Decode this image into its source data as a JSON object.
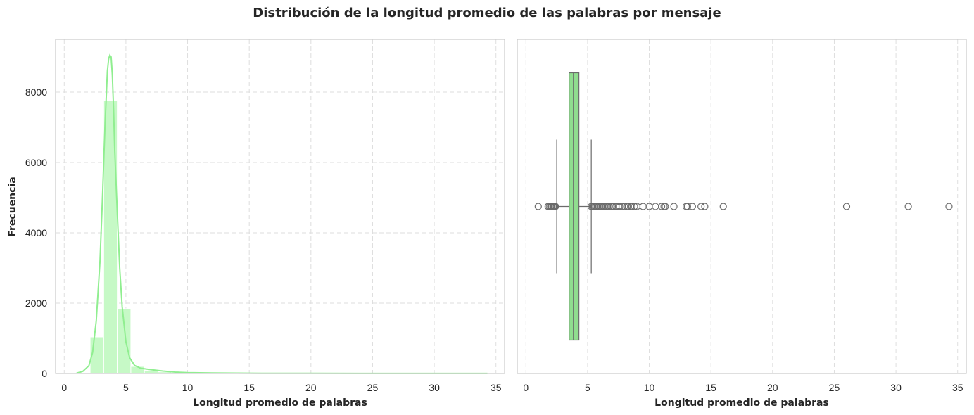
{
  "figure": {
    "suptitle": "Distribución de la longitud promedio de las palabras por mensaje"
  },
  "colors": {
    "hist_fill": "#c6f9c6",
    "kde_line": "#90ee90",
    "box_fill": "#90dd8f",
    "box_edge": "#6b6b6b",
    "frame": "#cccccc",
    "grid": "#dedede"
  },
  "chart_data": [
    {
      "type": "histogram",
      "title": "",
      "xlabel": "Longitud promedio de palabras",
      "ylabel": "Frecuencia",
      "xlim": [
        -0.7,
        35.7
      ],
      "ylim": [
        0,
        9500
      ],
      "xticks": [
        0,
        5,
        10,
        15,
        20,
        25,
        30,
        35
      ],
      "yticks": [
        0,
        2000,
        4000,
        6000,
        8000
      ],
      "grid": true,
      "bin_width": 1.1,
      "bins": [
        {
          "x0": 1.0,
          "x1": 2.1,
          "count": 15
        },
        {
          "x0": 2.1,
          "x1": 3.2,
          "count": 1040
        },
        {
          "x0": 3.2,
          "x1": 4.3,
          "count": 7760
        },
        {
          "x0": 4.3,
          "x1": 5.4,
          "count": 1840
        },
        {
          "x0": 5.4,
          "x1": 6.5,
          "count": 200
        },
        {
          "x0": 6.5,
          "x1": 7.6,
          "count": 90
        },
        {
          "x0": 7.6,
          "x1": 8.7,
          "count": 45
        },
        {
          "x0": 8.7,
          "x1": 9.8,
          "count": 20
        },
        {
          "x0": 9.8,
          "x1": 10.9,
          "count": 8
        },
        {
          "x0": 10.9,
          "x1": 12.0,
          "count": 6
        },
        {
          "x0": 12.0,
          "x1": 13.1,
          "count": 4
        },
        {
          "x0": 13.1,
          "x1": 14.2,
          "count": 2
        },
        {
          "x0": 14.2,
          "x1": 15.3,
          "count": 2
        },
        {
          "x0": 15.3,
          "x1": 16.4,
          "count": 1
        }
      ],
      "kde": {
        "x": [
          1.0,
          1.5,
          2.0,
          2.3,
          2.6,
          2.9,
          3.1,
          3.3,
          3.5,
          3.6,
          3.7,
          3.8,
          3.9,
          4.0,
          4.1,
          4.3,
          4.5,
          4.7,
          5.0,
          5.3,
          5.7,
          6.2,
          7.0,
          8.0,
          9.0,
          10.0,
          12.0,
          14.0,
          16.0,
          20.0,
          26.0,
          31.0,
          34.3
        ],
        "y": [
          10,
          60,
          220,
          600,
          1500,
          3200,
          5000,
          7000,
          8600,
          8950,
          9050,
          9000,
          8500,
          7500,
          6300,
          4600,
          3000,
          1900,
          900,
          450,
          230,
          150,
          110,
          70,
          40,
          25,
          15,
          10,
          6,
          4,
          3,
          3,
          2
        ]
      }
    },
    {
      "type": "box",
      "title": "",
      "xlabel": "Longitud promedio de palabras",
      "ylabel": "",
      "xlim": [
        -0.7,
        35.7
      ],
      "xticks": [
        0,
        5,
        10,
        15,
        20,
        25,
        30,
        35
      ],
      "grid": true,
      "orientation": "horizontal",
      "whisker_low": 2.5,
      "q1": 3.5,
      "median": 3.85,
      "q3": 4.3,
      "whisker_high": 5.3,
      "outliers": [
        1.0,
        1.8,
        1.9,
        2.0,
        2.05,
        2.1,
        2.2,
        2.25,
        2.3,
        2.35,
        2.4,
        5.3,
        5.4,
        5.5,
        5.6,
        5.7,
        5.8,
        5.9,
        6.0,
        6.1,
        6.2,
        6.3,
        6.4,
        6.5,
        6.6,
        6.7,
        6.9,
        7.0,
        7.1,
        7.3,
        7.5,
        7.6,
        7.8,
        8.0,
        8.2,
        8.3,
        8.5,
        8.6,
        8.8,
        9.0,
        9.5,
        10.0,
        10.5,
        11.0,
        11.2,
        11.3,
        12.0,
        13.0,
        13.1,
        13.5,
        14.2,
        14.5,
        16.0,
        26.0,
        31.0,
        34.3
      ]
    }
  ]
}
